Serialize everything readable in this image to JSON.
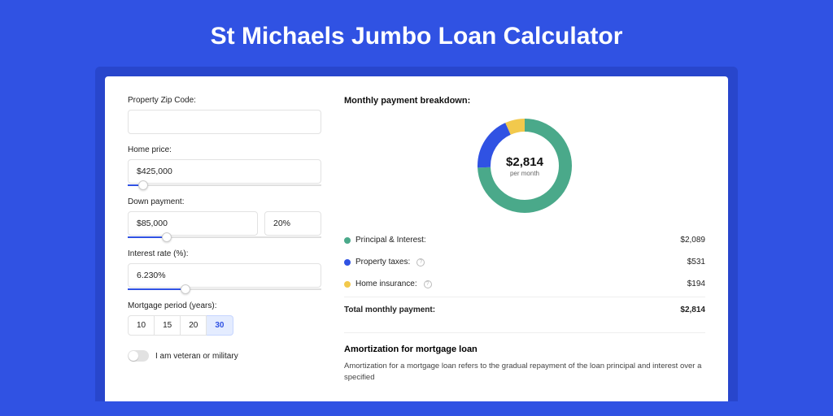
{
  "page": {
    "title": "St Michaels Jumbo Loan Calculator",
    "background_color": "#3052e3",
    "outer_card_color": "#2846cc",
    "card_color": "#ffffff"
  },
  "form": {
    "zip": {
      "label": "Property Zip Code:",
      "value": ""
    },
    "home_price": {
      "label": "Home price:",
      "value": "$425,000",
      "slider_percent": 8
    },
    "down_payment": {
      "label": "Down payment:",
      "value": "$85,000",
      "percent_value": "20%",
      "slider_percent": 20
    },
    "interest_rate": {
      "label": "Interest rate (%):",
      "value": "6.230%",
      "slider_percent": 30
    },
    "mortgage_period": {
      "label": "Mortgage period (years):",
      "options": [
        "10",
        "15",
        "20",
        "30"
      ],
      "selected": "30"
    },
    "veteran": {
      "label": "I am veteran or military",
      "checked": false
    }
  },
  "breakdown": {
    "title": "Monthly payment breakdown:",
    "donut": {
      "amount": "$2,814",
      "sub": "per month",
      "segments": [
        {
          "key": "principal_interest",
          "fraction": 0.742,
          "color": "#4aa98a"
        },
        {
          "key": "property_taxes",
          "fraction": 0.189,
          "color": "#3052e3"
        },
        {
          "key": "home_insurance",
          "fraction": 0.069,
          "color": "#f2c94c"
        }
      ],
      "stroke_width": 16,
      "radius": 50
    },
    "rows": [
      {
        "label": "Principal & Interest:",
        "value": "$2,089",
        "color": "#4aa98a",
        "help": false
      },
      {
        "label": "Property taxes:",
        "value": "$531",
        "color": "#3052e3",
        "help": true
      },
      {
        "label": "Home insurance:",
        "value": "$194",
        "color": "#f2c94c",
        "help": true
      }
    ],
    "total": {
      "label": "Total monthly payment:",
      "value": "$2,814"
    }
  },
  "amort": {
    "title": "Amortization for mortgage loan",
    "text": "Amortization for a mortgage loan refers to the gradual repayment of the loan principal and interest over a specified"
  }
}
